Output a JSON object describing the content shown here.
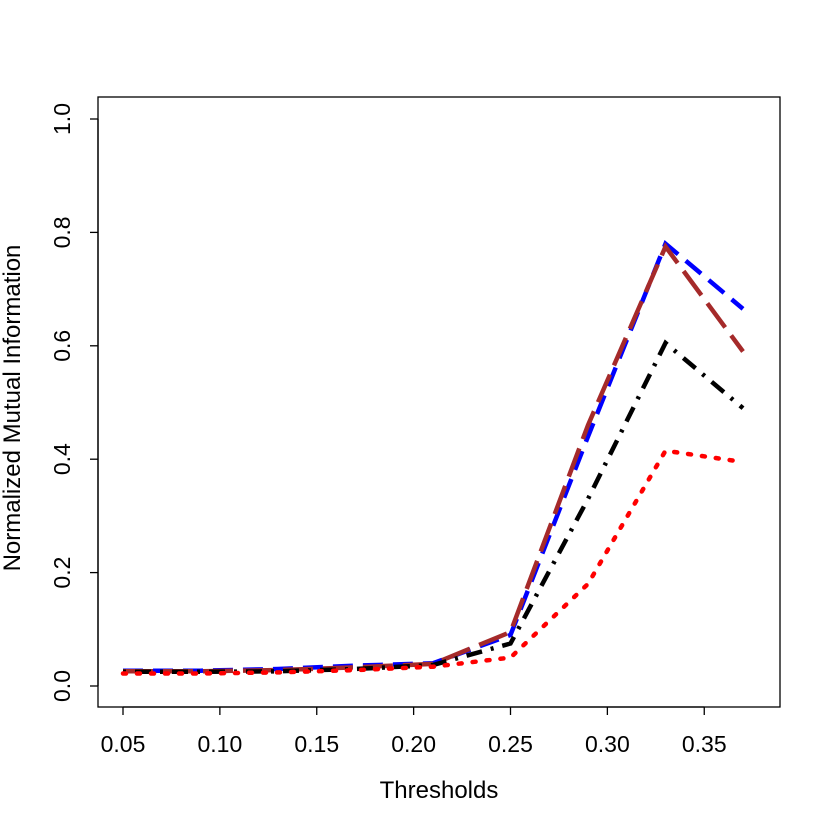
{
  "chart_data": {
    "type": "line",
    "title": "",
    "xlabel": "Thresholds",
    "ylabel": "Normalized Mutual Information",
    "xlim": [
      0.05,
      0.37
    ],
    "ylim": [
      0.0,
      1.0
    ],
    "xticks": [
      "0.05",
      "0.10",
      "0.15",
      "0.20",
      "0.25",
      "0.30",
      "0.35"
    ],
    "yticks": [
      "0.0",
      "0.2",
      "0.4",
      "0.6",
      "0.8",
      "1.0"
    ],
    "grid": false,
    "legend": "none",
    "x": [
      0.05,
      0.09,
      0.13,
      0.17,
      0.21,
      0.25,
      0.29,
      0.33,
      0.37
    ],
    "series": [
      {
        "color": "#0000ff",
        "style": "dashed",
        "values": [
          0.027,
          0.027,
          0.03,
          0.036,
          0.04,
          0.09,
          0.44,
          0.78,
          0.665
        ]
      },
      {
        "color": "#a52a2a",
        "style": "longdash",
        "values": [
          0.026,
          0.026,
          0.028,
          0.033,
          0.039,
          0.095,
          0.46,
          0.775,
          0.59
        ]
      },
      {
        "color": "#000000",
        "style": "dotdash",
        "values": [
          0.025,
          0.025,
          0.026,
          0.03,
          0.037,
          0.075,
          0.33,
          0.605,
          0.49
        ]
      },
      {
        "color": "#ff0000",
        "style": "dotted",
        "values": [
          0.022,
          0.022,
          0.024,
          0.028,
          0.034,
          0.05,
          0.18,
          0.415,
          0.395
        ]
      }
    ]
  }
}
